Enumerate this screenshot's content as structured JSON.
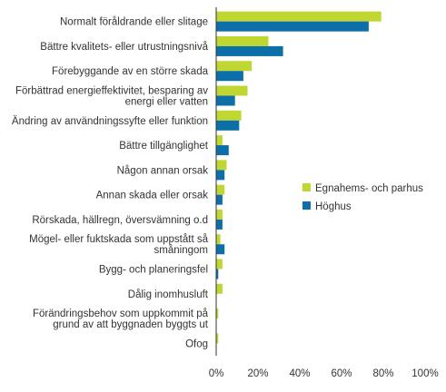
{
  "chart_data": {
    "type": "bar",
    "orientation": "horizontal",
    "categories": [
      [
        "Normalt föråldrande eller slitage"
      ],
      [
        "Bättre kvalitets- eller utrustningsnivå"
      ],
      [
        "Förebyggande av en större skada"
      ],
      [
        "Förbättrad energieffektivitet, besparing av",
        "energi eller vatten"
      ],
      [
        "Ändring av användningssyfte eller funktion"
      ],
      [
        "Bättre tillgänglighet"
      ],
      [
        "Någon annan orsak"
      ],
      [
        "Annan skada eller orsak"
      ],
      [
        "Rörskada, hällregn, översvämning o.d"
      ],
      [
        "Mögel- eller fuktskada som uppstått så",
        "småningom"
      ],
      [
        "Bygg- och planeringsfel"
      ],
      [
        "Dålig inomhusluft"
      ],
      [
        "Förändringsbehov som uppkommit på",
        "grund av att byggnaden byggts ut"
      ],
      [
        "Ofog"
      ]
    ],
    "series": [
      {
        "name": "Egnahems- och parhus",
        "color": "#bfd730",
        "values": [
          79,
          25,
          17,
          15,
          12,
          3,
          5,
          4,
          3,
          2,
          3,
          3,
          1,
          1
        ]
      },
      {
        "name": "Höghus",
        "color": "#0c6fa7",
        "values": [
          73,
          32,
          13,
          9,
          11,
          6,
          4,
          3,
          3,
          4,
          1,
          0,
          0,
          0
        ]
      }
    ],
    "xlim": [
      0,
      100
    ],
    "xticks": [
      0,
      20,
      40,
      60,
      80,
      100
    ],
    "tick_suffix": "%",
    "legend_position": "right",
    "grid": false
  }
}
